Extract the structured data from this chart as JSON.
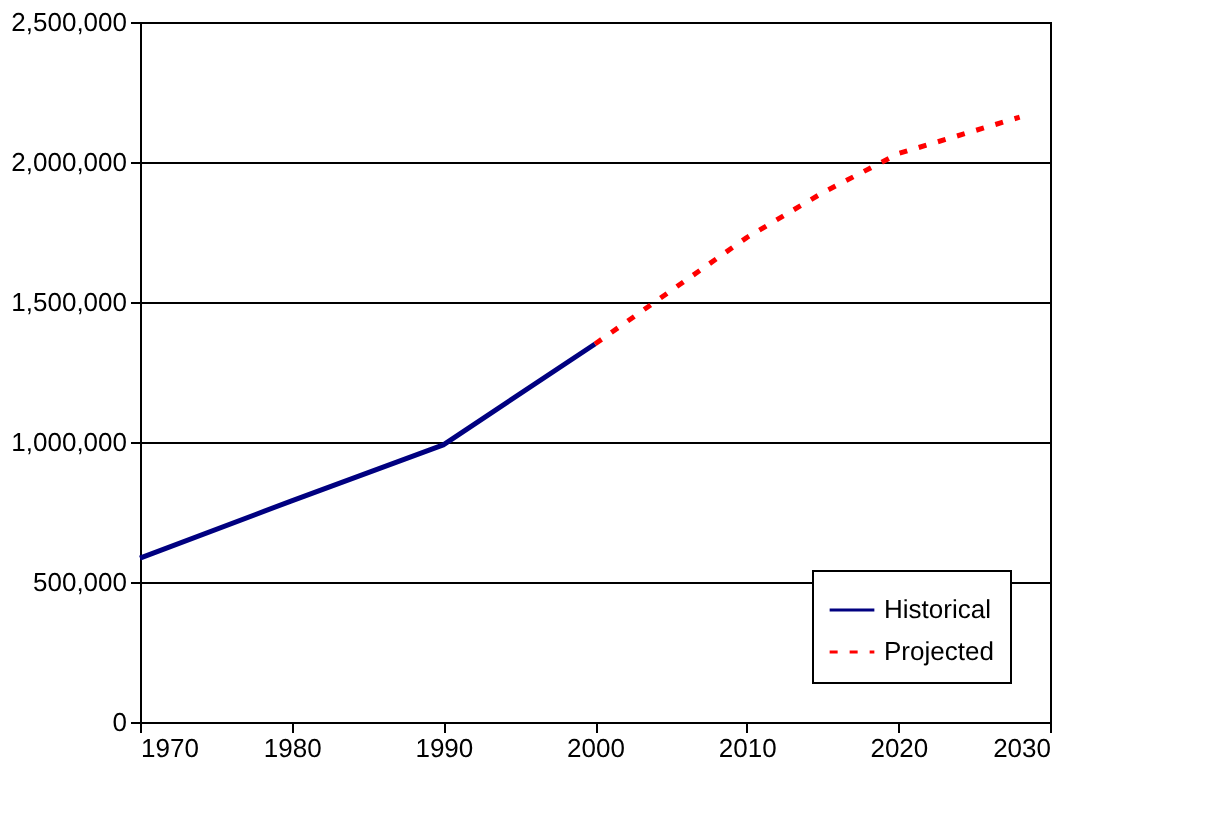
{
  "chart_data": {
    "type": "line",
    "xlim": [
      1970,
      2030
    ],
    "xticks": [
      1970,
      1980,
      1990,
      2000,
      2010,
      2020,
      2030
    ],
    "ylim": [
      0,
      2500000
    ],
    "yticks": [
      0,
      {
        "value": 500000,
        "label": "500,000"
      },
      {
        "value": 1000000,
        "label": "1,000,000"
      },
      {
        "value": 1500000,
        "label": "1,500,000"
      },
      {
        "value": 2000000,
        "label": "2,000,000"
      },
      {
        "value": 2500000,
        "label": "2,500,000"
      }
    ],
    "grid": "y",
    "legend": "bottom right",
    "marker": "none",
    "series": [
      {
        "name": "Historical",
        "color": "#000080",
        "line_style": "solid",
        "x": [
          1970,
          1980,
          1990,
          2000
        ],
        "values": [
          585000,
          790000,
          990000,
          1350000
        ]
      },
      {
        "name": "Projected",
        "color": "#ff0000",
        "line_style": "dashed",
        "x": [
          2000,
          2005,
          2010,
          2015,
          2020,
          2028
        ],
        "values": [
          1350000,
          1540000,
          1730000,
          1890000,
          2030000,
          2160000
        ]
      }
    ]
  }
}
